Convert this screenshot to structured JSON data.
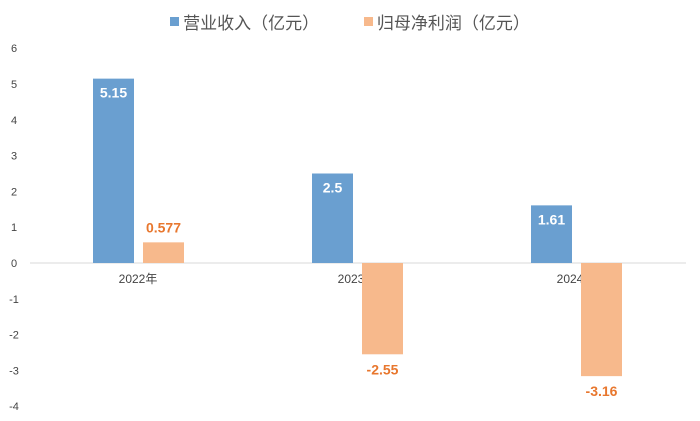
{
  "chart_data": {
    "type": "bar",
    "title": "",
    "xlabel": "",
    "ylabel": "",
    "categories": [
      "2022年",
      "2023年",
      "2024年"
    ],
    "series": [
      {
        "name": "营业收入（亿元）",
        "values": [
          5.15,
          2.5,
          1.61
        ],
        "labels": [
          "5.15",
          "2.5",
          "1.61"
        ],
        "color": "#6a9fd0",
        "label_color": "#ffffff"
      },
      {
        "name": "归母净利润（亿元）",
        "values": [
          0.577,
          -2.55,
          -3.16
        ],
        "labels": [
          "0.577",
          "-2.55",
          "-3.16"
        ],
        "color": "#f7b98c",
        "label_color": "#e8772e"
      }
    ],
    "ylim": [
      -4,
      6
    ],
    "yticks": [
      "-4",
      "-3",
      "-2",
      "-1",
      "0",
      "1",
      "2",
      "3",
      "4",
      "5",
      "6"
    ],
    "grid": false,
    "legend": "top"
  }
}
